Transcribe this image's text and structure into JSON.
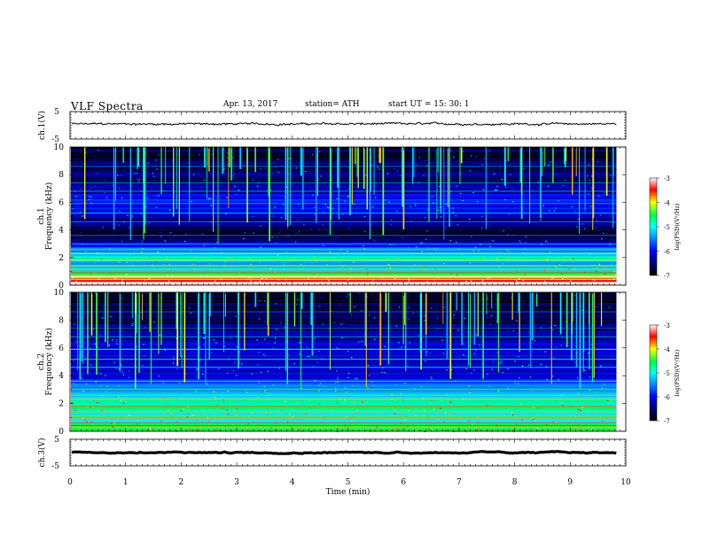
{
  "header": {
    "title": "VLF  Spectra",
    "date": "Apr. 13, 2017",
    "station": "station= ATH",
    "start": "start  UT  =   15: 30: 1"
  },
  "chart_data": [
    {
      "type": "line",
      "panel": "ch.1",
      "ylabel": "ch.1(V)",
      "ylim": [
        -5,
        5
      ],
      "y_ticks": [
        "5",
        "-5"
      ],
      "xlim": [
        0,
        10
      ],
      "series": [
        {
          "approx_level": 0.5,
          "fluctuation": 0.6
        }
      ]
    },
    {
      "type": "heatmap",
      "panel": "ch.1",
      "ylabel": "ch.1",
      "ylabel2": "Frequency (kHz)",
      "ylim": [
        0,
        10
      ],
      "y_ticks": [
        "0",
        "2",
        "4",
        "6",
        "8",
        "10"
      ],
      "xlim": [
        0,
        10
      ],
      "colorbar": {
        "label": "log(PSD)(V²/Hz)",
        "range": [
          -7,
          -3
        ],
        "ticks": [
          "-3",
          "-4",
          "-5",
          "-6",
          "-7"
        ]
      },
      "band_levels": [
        {
          "f": 0.4,
          "level": -3.6
        },
        {
          "f": 0.7,
          "level": -4.2
        },
        {
          "f": 1.0,
          "level": -4.8
        },
        {
          "f": 1.5,
          "level": -5.2
        },
        {
          "f": 2.0,
          "level": -5.0
        },
        {
          "f": 2.5,
          "level": -5.3
        },
        {
          "f": 3.0,
          "level": -6.2
        },
        {
          "f": 4.0,
          "level": -6.9
        },
        {
          "f": 5.0,
          "level": -6.3
        },
        {
          "f": 6.0,
          "level": -5.8
        },
        {
          "f": 7.0,
          "level": -6.4
        },
        {
          "f": 8.5,
          "level": -6.6
        },
        {
          "f": 10.0,
          "level": -6.8
        }
      ]
    },
    {
      "type": "heatmap",
      "panel": "ch.2",
      "ylabel": "ch.2",
      "ylabel2": "Frequency (kHz)",
      "ylim": [
        0,
        10
      ],
      "y_ticks": [
        "0",
        "2",
        "4",
        "6",
        "8",
        "10"
      ],
      "xlim": [
        0,
        10
      ],
      "colorbar": {
        "label": "log(PSD)(V²/Hz)",
        "range": [
          -7,
          -3
        ],
        "ticks": [
          "-3",
          "-4",
          "-5",
          "-6",
          "-7"
        ]
      },
      "band_levels": [
        {
          "f": 0.4,
          "level": -4.6
        },
        {
          "f": 1.0,
          "level": -5.0
        },
        {
          "f": 1.5,
          "level": -4.9
        },
        {
          "f": 2.0,
          "level": -4.7
        },
        {
          "f": 2.5,
          "level": -5.2
        },
        {
          "f": 3.0,
          "level": -5.5
        },
        {
          "f": 4.0,
          "level": -6.0
        },
        {
          "f": 5.0,
          "level": -6.2
        },
        {
          "f": 6.0,
          "level": -6.1
        },
        {
          "f": 7.0,
          "level": -6.5
        },
        {
          "f": 8.5,
          "level": -6.7
        },
        {
          "f": 10.0,
          "level": -6.8
        }
      ]
    },
    {
      "type": "line",
      "panel": "ch.3",
      "ylabel": "ch.3(V)",
      "ylim": [
        -5,
        5
      ],
      "y_ticks": [
        "5",
        "-5"
      ],
      "xlim": [
        0,
        10
      ],
      "series": [
        {
          "approx_level": 0.0,
          "fluctuation": 0.05
        }
      ]
    }
  ],
  "x_axis": {
    "xlabel": "Time  (min)",
    "ticks": [
      "0",
      "1",
      "2",
      "3",
      "4",
      "5",
      "6",
      "7",
      "8",
      "9",
      "10"
    ],
    "data_end": 9.83
  }
}
